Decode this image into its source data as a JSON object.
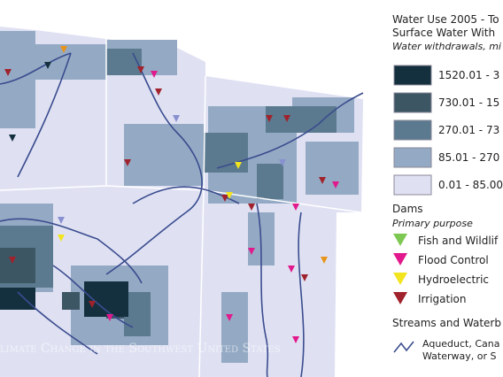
{
  "legend": {
    "title_lines": [
      "Water Use 2005 - To",
      "Surface Water With"
    ],
    "subtitle": "Water withdrawals, mi",
    "classes": [
      {
        "label": "1520.01 - 3",
        "color": "#14303f"
      },
      {
        "label": "730.01 - 15",
        "color": "#3d5664"
      },
      {
        "label": "270.01 - 73",
        "color": "#5b7a8f"
      },
      {
        "label": "85.01 - 270",
        "color": "#94aac4"
      },
      {
        "label": "0.01 - 85.00",
        "color": "#dfe1f3"
      }
    ],
    "dams": {
      "title": "Dams",
      "subtitle": "Primary purpose",
      "items": [
        {
          "label": "Fish and Wildlif",
          "color": "#7dc852"
        },
        {
          "label": "Flood Control",
          "color": "#e2198c"
        },
        {
          "label": "Hydroelectric",
          "color": "#f2e41e"
        },
        {
          "label": "Irrigation",
          "color": "#a0222c"
        }
      ]
    },
    "streams": {
      "title": "Streams and Waterb",
      "lines": [
        "Aqueduct, Cana",
        "Waterway, or S"
      ]
    }
  },
  "watermark": "limate Change in the Southwest United States"
}
